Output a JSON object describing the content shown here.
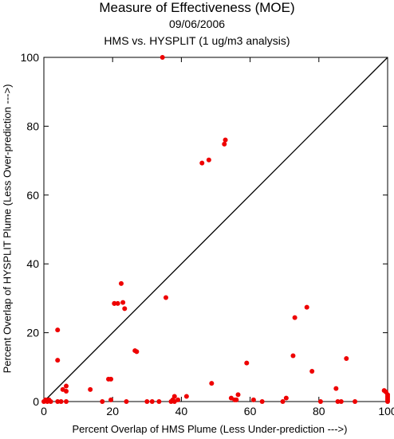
{
  "chart_data": {
    "type": "scatter",
    "title": "Measure of Effectiveness (MOE)",
    "subtitle": "09/06/2006",
    "subtitle2": "HMS vs. HYSPLIT  (1 ug/m3 analysis)",
    "xlabel": "Percent Overlap of HMS Plume (Less Under-prediction --->)",
    "ylabel": "Percent Overlap of HYSPLIT Plume (Less Over-prediction --->)",
    "xlim": [
      0,
      100
    ],
    "ylim": [
      0,
      100
    ],
    "xticks": [
      0,
      20,
      40,
      60,
      80,
      100
    ],
    "yticks": [
      0,
      20,
      40,
      60,
      80,
      100
    ],
    "grid": false,
    "reference_line": "y = x",
    "point_color": "#ee0000",
    "x": [
      0,
      0.5,
      1,
      1.5,
      2,
      4,
      4,
      4,
      5,
      5.5,
      6.5,
      6.5,
      6.5,
      13.5,
      17,
      18.8,
      19.5,
      19.5,
      20.5,
      20.5,
      21.5,
      22.5,
      23,
      23.5,
      24,
      26.5,
      27,
      30,
      31.5,
      33.5,
      34.5,
      35.5,
      37,
      37.5,
      38,
      38,
      39,
      41.5,
      46,
      48,
      48.8,
      52.5,
      52.8,
      54.5,
      55.5,
      56,
      56.5,
      59,
      61,
      63.5,
      69.5,
      70.5,
      72.5,
      73,
      76.5,
      78,
      80.5,
      85,
      85.5,
      86.5,
      88,
      90.5,
      99,
      99.5,
      100,
      100,
      100,
      100,
      100
    ],
    "y": [
      0,
      0.5,
      0,
      0.5,
      0,
      0,
      20.8,
      12,
      0,
      3.5,
      4.5,
      3,
      0,
      3.5,
      0,
      6.5,
      6.5,
      0.5,
      28.5,
      28.5,
      28.5,
      34.3,
      28.8,
      27,
      0,
      14.8,
      14.5,
      0,
      0,
      0,
      100,
      30.2,
      0,
      0.5,
      0,
      1.5,
      0.5,
      1.5,
      69.3,
      70.2,
      5.3,
      74.8,
      76,
      1,
      0.5,
      0.5,
      2,
      11.2,
      0.5,
      0,
      0,
      1,
      13.3,
      24.4,
      27.4,
      8.8,
      0,
      3.8,
      0,
      0,
      12.5,
      0,
      3.2,
      2.8,
      2,
      1.5,
      1,
      0.5,
      0
    ]
  }
}
